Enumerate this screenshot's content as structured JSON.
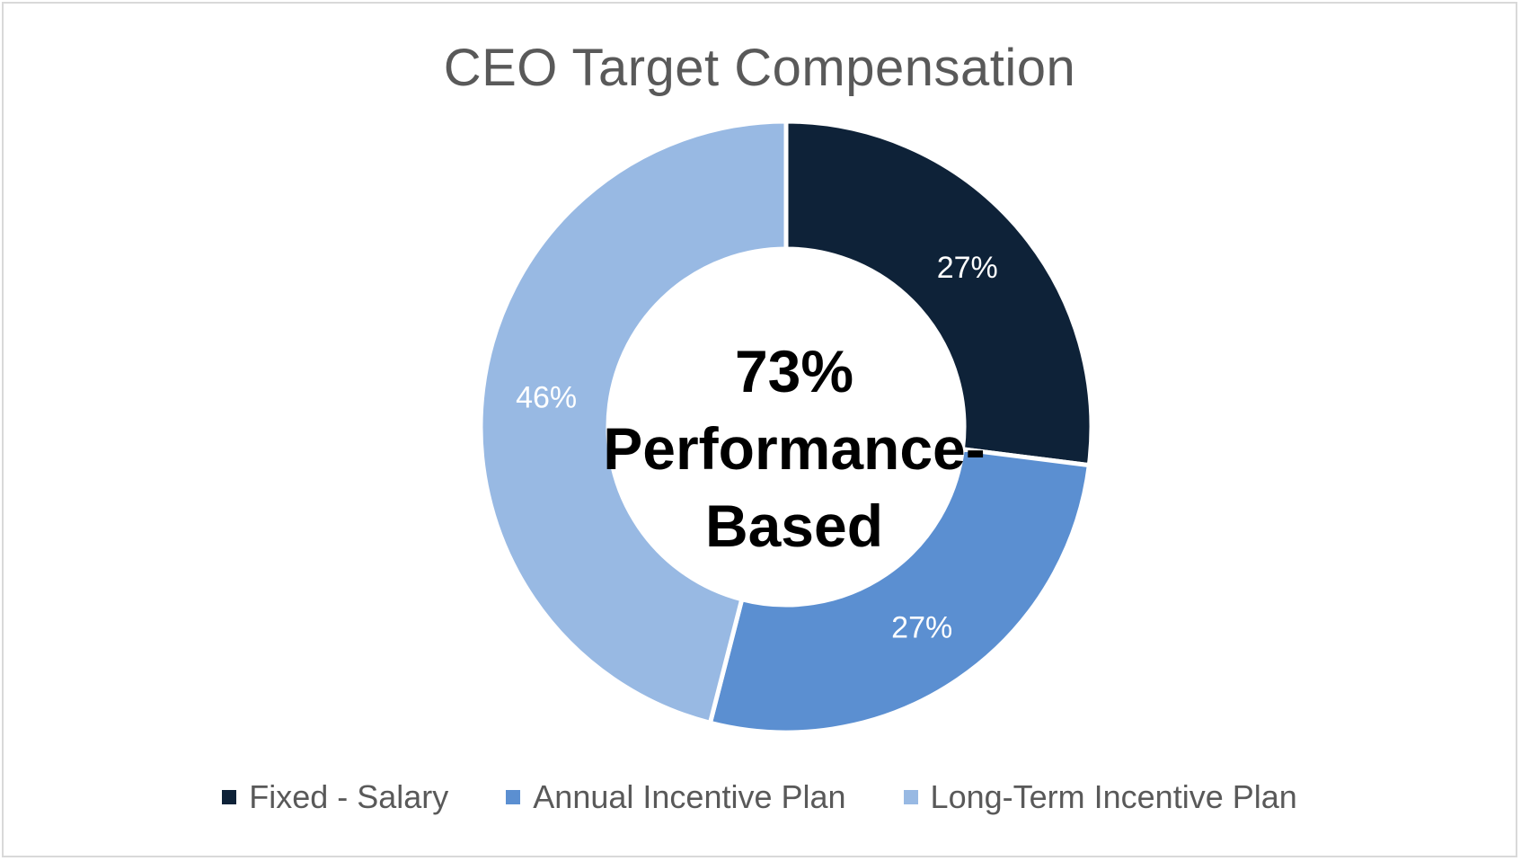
{
  "chart_data": {
    "type": "pie",
    "variant": "donut",
    "title": "CEO Target Compensation",
    "center_label": [
      "73%",
      "Performance-",
      "Based"
    ],
    "slices": [
      {
        "label": "Fixed - Salary",
        "value": 27,
        "display": "27%",
        "color": "#0e2238"
      },
      {
        "label": "Annual Incentive Plan",
        "value": 27,
        "display": "27%",
        "color": "#5b8fd1"
      },
      {
        "label": "Long-Term Incentive Plan",
        "value": 46,
        "display": "46%",
        "color": "#98b9e3"
      }
    ],
    "legend_position": "bottom",
    "slice_label_color": "#ffffff"
  }
}
